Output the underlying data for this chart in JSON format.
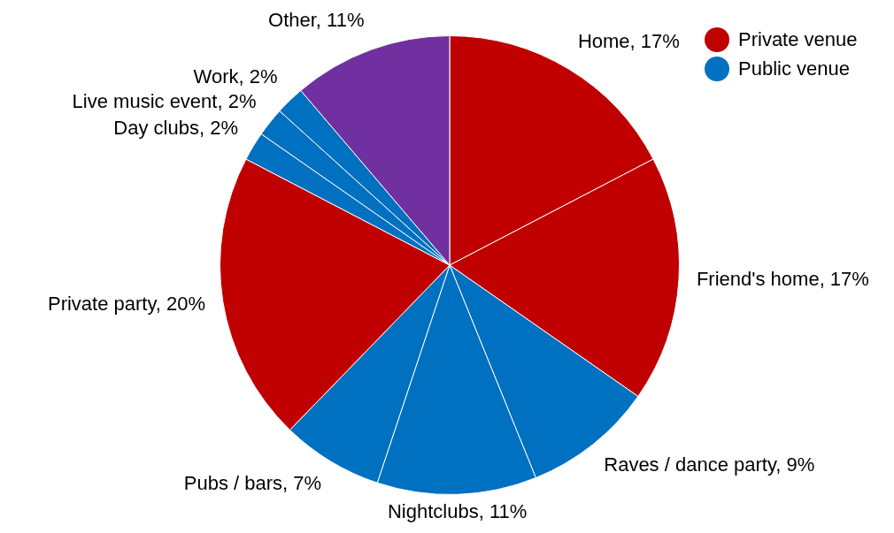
{
  "chart_data": {
    "type": "pie",
    "categories": [
      "Home",
      "Friend's home",
      "Raves / dance party",
      "Nightclubs",
      "Pubs / bars",
      "Private party",
      "Day clubs",
      "Live music event",
      "Work",
      "Other"
    ],
    "values": [
      17,
      17,
      9,
      11,
      7,
      20,
      2,
      2,
      2,
      11
    ],
    "value_labels": [
      "17%",
      "17%",
      "9%",
      "11%",
      "7%",
      "20%",
      "2%",
      "2%",
      "2%",
      "11%"
    ],
    "colors": [
      "#c00000",
      "#c00000",
      "#0070c0",
      "#0070c0",
      "#0070c0",
      "#c00000",
      "#0070c0",
      "#0070c0",
      "#0070c0",
      "#7030a0"
    ],
    "annotations": [
      "Private venue",
      "Public venue"
    ],
    "legend": "top right"
  }
}
